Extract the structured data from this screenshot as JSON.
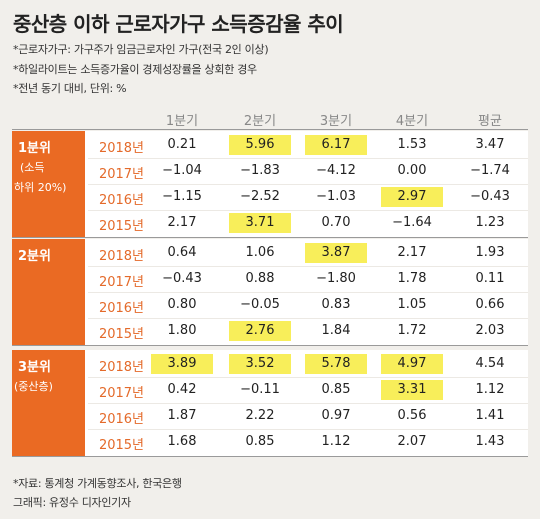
{
  "title": "중산층 이하 근로자가구 소득증감율 추이",
  "notes": [
    "*근로자가구: 가구주가 임금근로자인 가구(전국 2인 이상)",
    "*하일라이트는 소득증가율이 경제성장률을 상회한 경우",
    "*전년 동기 대비, 단위: %"
  ],
  "footer": {
    "source": "*자료: 통계청 가계동향조사, 한국은행",
    "credit": "그래픽: 유정수 디자인기자"
  },
  "colors": {
    "accent": "#ea6a23",
    "highlight": "#f8ee5a",
    "year_text": "#e46a2a"
  },
  "chart_data": {
    "type": "table",
    "columns": [
      "1분기",
      "2분기",
      "3분기",
      "4분기",
      "평균"
    ],
    "groups": [
      {
        "label": "1분위",
        "sublabel_lines": [
          "(소득",
          "하위 20%)"
        ],
        "rows": [
          {
            "year": "2018년",
            "values": [
              "0.21",
              "5.96",
              "6.17",
              "1.53",
              "3.47"
            ],
            "highlight": [
              false,
              true,
              true,
              false,
              false
            ]
          },
          {
            "year": "2017년",
            "values": [
              "−1.04",
              "−1.83",
              "−4.12",
              "0.00",
              "−1.74"
            ],
            "highlight": [
              false,
              false,
              false,
              false,
              false
            ]
          },
          {
            "year": "2016년",
            "values": [
              "−1.15",
              "−2.52",
              "−1.03",
              "2.97",
              "−0.43"
            ],
            "highlight": [
              false,
              false,
              false,
              true,
              false
            ]
          },
          {
            "year": "2015년",
            "values": [
              "2.17",
              "3.71",
              "0.70",
              "−1.64",
              "1.23"
            ],
            "highlight": [
              false,
              true,
              false,
              false,
              false
            ]
          }
        ]
      },
      {
        "label": "2분위",
        "sublabel_lines": [],
        "rows": [
          {
            "year": "2018년",
            "values": [
              "0.64",
              "1.06",
              "3.87",
              "2.17",
              "1.93"
            ],
            "highlight": [
              false,
              false,
              true,
              false,
              false
            ]
          },
          {
            "year": "2017년",
            "values": [
              "−0.43",
              "0.88",
              "−1.80",
              "1.78",
              "0.11"
            ],
            "highlight": [
              false,
              false,
              false,
              false,
              false
            ]
          },
          {
            "year": "2016년",
            "values": [
              "0.80",
              "−0.05",
              "0.83",
              "1.05",
              "0.66"
            ],
            "highlight": [
              false,
              false,
              false,
              false,
              false
            ]
          },
          {
            "year": "2015년",
            "values": [
              "1.80",
              "2.76",
              "1.84",
              "1.72",
              "2.03"
            ],
            "highlight": [
              false,
              true,
              false,
              false,
              false
            ]
          }
        ]
      },
      {
        "label": "3분위",
        "sublabel_lines": [
          "(중산층)"
        ],
        "rows": [
          {
            "year": "2018년",
            "values": [
              "3.89",
              "3.52",
              "5.78",
              "4.97",
              "4.54"
            ],
            "highlight": [
              true,
              true,
              true,
              true,
              false
            ]
          },
          {
            "year": "2017년",
            "values": [
              "0.42",
              "−0.11",
              "0.85",
              "3.31",
              "1.12"
            ],
            "highlight": [
              false,
              false,
              false,
              true,
              false
            ]
          },
          {
            "year": "2016년",
            "values": [
              "1.87",
              "2.22",
              "0.97",
              "0.56",
              "1.41"
            ],
            "highlight": [
              false,
              false,
              false,
              false,
              false
            ]
          },
          {
            "year": "2015년",
            "values": [
              "1.68",
              "0.85",
              "1.12",
              "2.07",
              "1.43"
            ],
            "highlight": [
              false,
              false,
              false,
              false,
              false
            ]
          }
        ]
      }
    ]
  }
}
